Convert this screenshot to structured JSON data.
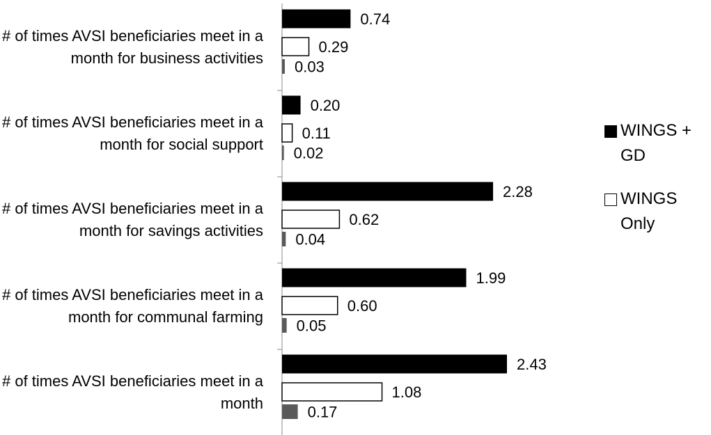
{
  "chart_data": {
    "type": "bar",
    "orientation": "horizontal",
    "categories": [
      "# of times AVSI beneficiaries meet in a month for business activities",
      "# of times AVSI beneficiaries meet in a month for social support",
      "# of times AVSI beneficiaries meet in a month for savings activities",
      "# of times AVSI beneficiaries meet in a month for communal farming",
      "# of times AVSI beneficiaries meet in a month"
    ],
    "series": [
      {
        "name": "WINGS + GD",
        "color": "#000000",
        "values": [
          0.74,
          0.2,
          2.28,
          1.99,
          2.43
        ],
        "value_labels": [
          "0.74",
          "0.20",
          "2.28",
          "1.99",
          "2.43"
        ]
      },
      {
        "name": "WINGS Only",
        "color": "#ffffff",
        "values": [
          0.29,
          0.11,
          0.62,
          0.6,
          1.08
        ],
        "value_labels": [
          "0.29",
          "0.11",
          "0.62",
          "0.60",
          "1.08"
        ]
      },
      {
        "color": "#595959",
        "values": [
          0.03,
          0.02,
          0.04,
          0.05,
          0.17
        ],
        "value_labels": [
          "0.03",
          "0.02",
          "0.04",
          "0.05",
          "0.17"
        ]
      }
    ],
    "legend": "right"
  }
}
